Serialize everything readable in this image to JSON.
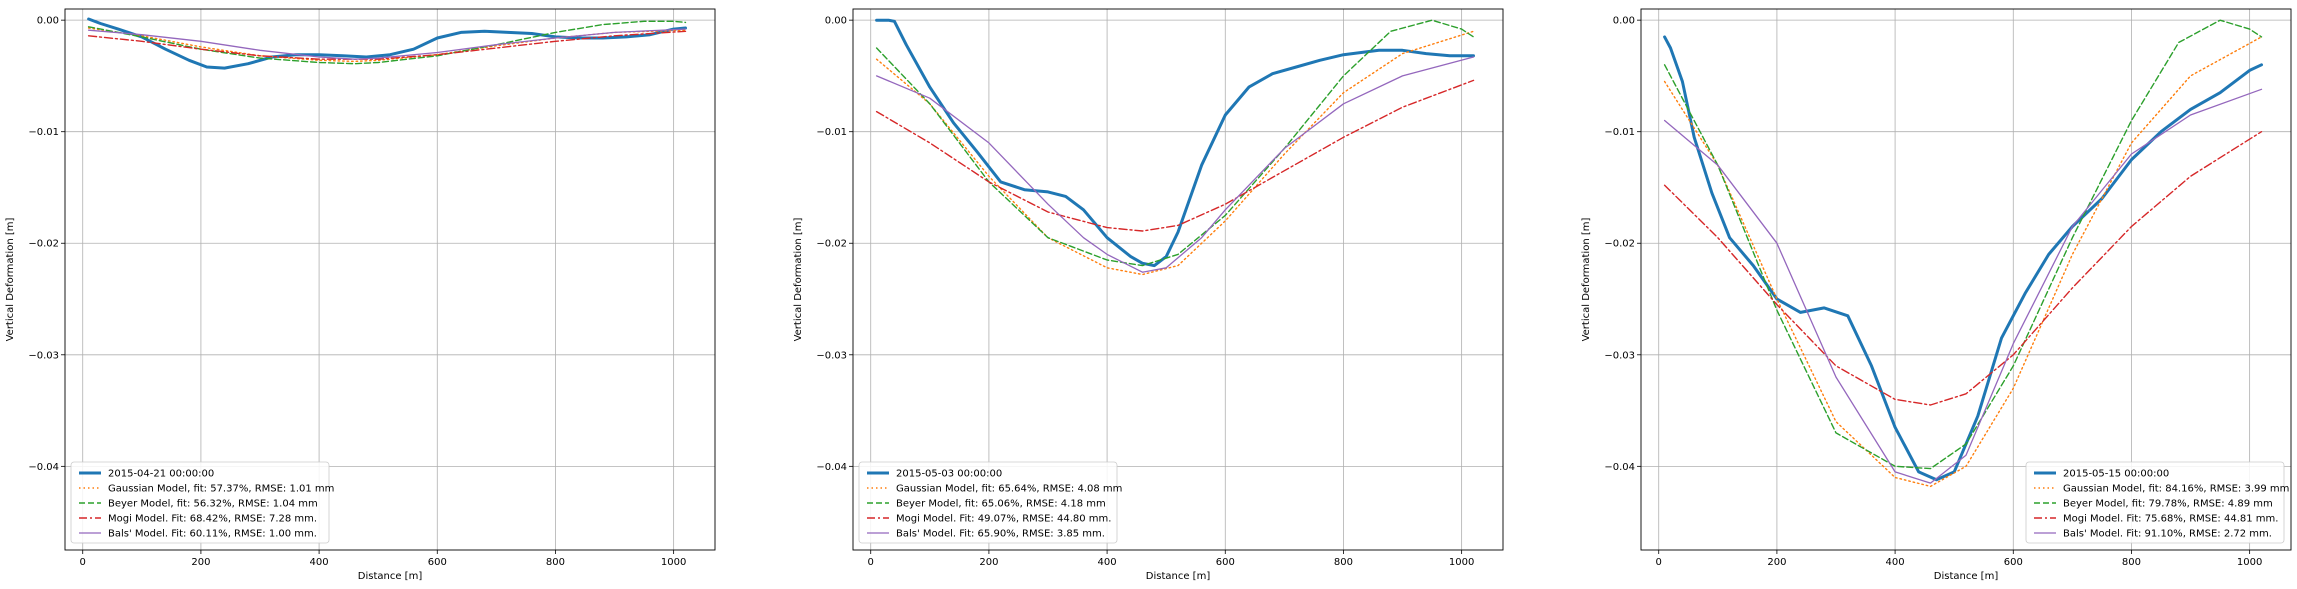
{
  "colors": {
    "observed": "#1f77b4",
    "gaussian": "#ff7f0e",
    "beyer": "#2ca02c",
    "mogi": "#d62728",
    "bals": "#9467bd",
    "grid": "#b0b0b0",
    "axis": "#000000"
  },
  "chart_data": [
    {
      "type": "line",
      "xlabel": "Distance [m]",
      "ylabel": "Vertical Deformation [m]",
      "xlim": [
        -30,
        1070
      ],
      "ylim": [
        -0.0475,
        0.001
      ],
      "xticks": [
        "0",
        "200",
        "400",
        "600",
        "800",
        "1000"
      ],
      "yticks": [
        "0.00",
        "−0.01",
        "−0.02",
        "−0.03",
        "−0.04"
      ],
      "grid": true,
      "legend_position": "lower-left",
      "series": [
        {
          "name": "2015-04-21 00:00:00",
          "style": "solid-thick",
          "color_key": "observed",
          "x": [
            10,
            30,
            60,
            100,
            140,
            180,
            210,
            240,
            280,
            320,
            360,
            400,
            440,
            480,
            520,
            560,
            600,
            640,
            680,
            720,
            760,
            800,
            840,
            880,
            920,
            960,
            1000,
            1020
          ],
          "y": [
            0.0001,
            -0.0003,
            -0.0008,
            -0.0015,
            -0.0026,
            -0.0036,
            -0.0042,
            -0.0043,
            -0.0039,
            -0.0033,
            -0.0031,
            -0.0031,
            -0.0032,
            -0.0033,
            -0.0031,
            -0.0026,
            -0.0016,
            -0.0011,
            -0.001,
            -0.0011,
            -0.0012,
            -0.0015,
            -0.0016,
            -0.0016,
            -0.0015,
            -0.0013,
            -0.0008,
            -0.0007
          ]
        },
        {
          "name": "Gaussian Model, fit: 57.37%, RMSE: 1.01 mm",
          "style": "dotted",
          "color_key": "gaussian",
          "x": [
            10,
            100,
            200,
            300,
            400,
            460,
            500,
            600,
            700,
            800,
            900,
            1020
          ],
          "y": [
            -0.0007,
            -0.0014,
            -0.0024,
            -0.0032,
            -0.0036,
            -0.0037,
            -0.0036,
            -0.0031,
            -0.0023,
            -0.0016,
            -0.0011,
            -0.0009
          ]
        },
        {
          "name": "Beyer Model, fit: 56.32%, RMSE: 1.04 mm",
          "style": "dashed",
          "color_key": "beyer",
          "x": [
            10,
            100,
            200,
            300,
            400,
            460,
            500,
            600,
            700,
            800,
            880,
            950,
            1000,
            1020
          ],
          "y": [
            -0.0006,
            -0.0015,
            -0.0026,
            -0.0034,
            -0.0038,
            -0.0039,
            -0.0038,
            -0.0032,
            -0.0022,
            -0.0011,
            -0.0004,
            -0.0001,
            -0.0001,
            -0.0002
          ]
        },
        {
          "name": "Mogi Model. Fit: 68.42%, RMSE: 7.28 mm.",
          "style": "dashdot",
          "color_key": "mogi",
          "x": [
            10,
            100,
            200,
            300,
            400,
            460,
            500,
            600,
            700,
            800,
            900,
            1020
          ],
          "y": [
            -0.0014,
            -0.0019,
            -0.0026,
            -0.0032,
            -0.0035,
            -0.0035,
            -0.0035,
            -0.0031,
            -0.0025,
            -0.0019,
            -0.0014,
            -0.001
          ]
        },
        {
          "name": "Bals' Model. Fit: 60.11%, RMSE: 1.00 mm.",
          "style": "solid-thin",
          "color_key": "bals",
          "x": [
            10,
            100,
            200,
            300,
            400,
            460,
            500,
            600,
            700,
            800,
            900,
            1020
          ],
          "y": [
            -0.0009,
            -0.0013,
            -0.0019,
            -0.0027,
            -0.0033,
            -0.0035,
            -0.0034,
            -0.0029,
            -0.0022,
            -0.0016,
            -0.0011,
            -0.0008
          ]
        }
      ]
    },
    {
      "type": "line",
      "xlabel": "Distance [m]",
      "ylabel": "Vertical Deformation [m]",
      "xlim": [
        -30,
        1070
      ],
      "ylim": [
        -0.0475,
        0.001
      ],
      "xticks": [
        "0",
        "200",
        "400",
        "600",
        "800",
        "1000"
      ],
      "yticks": [
        "0.00",
        "−0.01",
        "−0.02",
        "−0.03",
        "−0.04"
      ],
      "grid": true,
      "legend_position": "lower-left",
      "series": [
        {
          "name": "2015-05-03 00:00:00",
          "style": "solid-thick",
          "color_key": "observed",
          "x": [
            10,
            30,
            40,
            60,
            100,
            140,
            180,
            220,
            260,
            300,
            330,
            360,
            400,
            440,
            460,
            480,
            500,
            520,
            560,
            600,
            640,
            680,
            720,
            760,
            800,
            860,
            900,
            940,
            980,
            1020
          ],
          "y": [
            0.0,
            0.0,
            -0.0001,
            -0.0022,
            -0.006,
            -0.0092,
            -0.0118,
            -0.0145,
            -0.0152,
            -0.0154,
            -0.0158,
            -0.017,
            -0.0195,
            -0.0212,
            -0.0218,
            -0.022,
            -0.0212,
            -0.019,
            -0.013,
            -0.0085,
            -0.006,
            -0.0048,
            -0.0042,
            -0.0036,
            -0.0031,
            -0.0027,
            -0.0027,
            -0.003,
            -0.0032,
            -0.0032
          ]
        },
        {
          "name": "Gaussian Model, fit: 65.64%, RMSE: 4.08 mm",
          "style": "dotted",
          "color_key": "gaussian",
          "x": [
            10,
            100,
            200,
            300,
            400,
            460,
            520,
            600,
            700,
            800,
            900,
            1020
          ],
          "y": [
            -0.0035,
            -0.0075,
            -0.014,
            -0.0195,
            -0.0222,
            -0.0228,
            -0.022,
            -0.018,
            -0.012,
            -0.0065,
            -0.003,
            -0.001
          ]
        },
        {
          "name": "Beyer Model, fit: 65.06%, RMSE: 4.18 mm",
          "style": "dashed",
          "color_key": "beyer",
          "x": [
            10,
            100,
            200,
            300,
            400,
            460,
            520,
            600,
            700,
            800,
            880,
            950,
            1000,
            1020
          ],
          "y": [
            -0.0025,
            -0.0075,
            -0.0145,
            -0.0195,
            -0.0215,
            -0.022,
            -0.021,
            -0.0175,
            -0.0115,
            -0.005,
            -0.001,
            0.0,
            -0.0008,
            -0.0015
          ]
        },
        {
          "name": "Mogi Model. Fit: 49.07%, RMSE: 44.80 mm.",
          "style": "dashdot",
          "color_key": "mogi",
          "x": [
            10,
            100,
            200,
            300,
            400,
            460,
            520,
            600,
            700,
            800,
            900,
            1020
          ],
          "y": [
            -0.0082,
            -0.011,
            -0.0145,
            -0.0172,
            -0.0186,
            -0.0189,
            -0.0184,
            -0.0165,
            -0.0135,
            -0.0105,
            -0.0078,
            -0.0054
          ]
        },
        {
          "name": "Bals' Model. Fit: 65.90%, RMSE: 3.85 mm.",
          "style": "solid-thin",
          "color_key": "bals",
          "x": [
            10,
            100,
            200,
            300,
            360,
            400,
            460,
            500,
            560,
            600,
            700,
            800,
            900,
            1020
          ],
          "y": [
            -0.005,
            -0.007,
            -0.011,
            -0.0165,
            -0.0195,
            -0.021,
            -0.0226,
            -0.0222,
            -0.0195,
            -0.017,
            -0.0115,
            -0.0075,
            -0.005,
            -0.0033
          ]
        }
      ]
    },
    {
      "type": "line",
      "xlabel": "Distance [m]",
      "ylabel": "Vertical Deformation [m]",
      "xlim": [
        -30,
        1070
      ],
      "ylim": [
        -0.0475,
        0.001
      ],
      "xticks": [
        "0",
        "200",
        "400",
        "600",
        "800",
        "1000"
      ],
      "yticks": [
        "0.00",
        "−0.01",
        "−0.02",
        "−0.03",
        "−0.04"
      ],
      "grid": true,
      "legend_position": "lower-right",
      "series": [
        {
          "name": "2015-05-15 00:00:00",
          "style": "solid-thick",
          "color_key": "observed",
          "x": [
            10,
            20,
            40,
            60,
            90,
            120,
            160,
            200,
            240,
            280,
            320,
            360,
            400,
            440,
            470,
            500,
            540,
            580,
            620,
            660,
            700,
            750,
            800,
            850,
            900,
            950,
            1000,
            1020
          ],
          "y": [
            -0.0015,
            -0.0025,
            -0.0055,
            -0.0105,
            -0.0155,
            -0.0195,
            -0.022,
            -0.025,
            -0.0262,
            -0.0258,
            -0.0265,
            -0.031,
            -0.0365,
            -0.0405,
            -0.0412,
            -0.0405,
            -0.0355,
            -0.0285,
            -0.0245,
            -0.021,
            -0.0185,
            -0.016,
            -0.0125,
            -0.01,
            -0.008,
            -0.0065,
            -0.0045,
            -0.004
          ]
        },
        {
          "name": "Gaussian Model, fit: 84.16%, RMSE: 3.99 mm",
          "style": "dotted",
          "color_key": "gaussian",
          "x": [
            10,
            100,
            200,
            300,
            400,
            460,
            520,
            600,
            700,
            800,
            900,
            1020
          ],
          "y": [
            -0.0055,
            -0.013,
            -0.025,
            -0.036,
            -0.041,
            -0.0418,
            -0.04,
            -0.033,
            -0.021,
            -0.011,
            -0.005,
            -0.0015
          ]
        },
        {
          "name": "Beyer Model, fit: 79.78%, RMSE: 4.89 mm",
          "style": "dashed",
          "color_key": "beyer",
          "x": [
            10,
            100,
            200,
            300,
            400,
            460,
            520,
            600,
            700,
            800,
            880,
            950,
            1000,
            1020
          ],
          "y": [
            -0.004,
            -0.013,
            -0.026,
            -0.037,
            -0.04,
            -0.0402,
            -0.038,
            -0.031,
            -0.0195,
            -0.009,
            -0.002,
            0.0,
            -0.0008,
            -0.0015
          ]
        },
        {
          "name": "Mogi Model. Fit: 75.68%, RMSE: 44.81 mm.",
          "style": "dashdot",
          "color_key": "mogi",
          "x": [
            10,
            100,
            200,
            300,
            400,
            460,
            520,
            600,
            700,
            800,
            900,
            1020
          ],
          "y": [
            -0.0148,
            -0.0195,
            -0.0255,
            -0.031,
            -0.034,
            -0.0345,
            -0.0335,
            -0.03,
            -0.024,
            -0.0185,
            -0.014,
            -0.01
          ]
        },
        {
          "name": "Bals' Model. Fit: 91.10%, RMSE: 2.72 mm.",
          "style": "solid-thin",
          "color_key": "bals",
          "x": [
            10,
            100,
            200,
            300,
            400,
            460,
            520,
            600,
            700,
            800,
            900,
            1020
          ],
          "y": [
            -0.009,
            -0.013,
            -0.02,
            -0.032,
            -0.0405,
            -0.0415,
            -0.039,
            -0.029,
            -0.0185,
            -0.012,
            -0.0085,
            -0.0062
          ]
        }
      ]
    }
  ]
}
